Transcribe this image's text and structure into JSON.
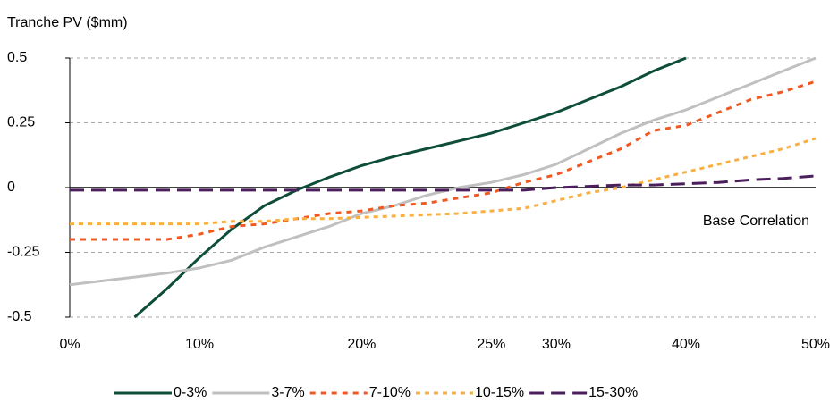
{
  "chart_data": {
    "type": "line",
    "y_axis_label": "Tranche PV ($mm)",
    "annotation": "Base Correlation",
    "categories": [
      "0%",
      null,
      null,
      null,
      "10%",
      null,
      null,
      null,
      null,
      "20%",
      null,
      null,
      null,
      "25%",
      null,
      "30%",
      null,
      null,
      null,
      "40%",
      null,
      null,
      null,
      "50%"
    ],
    "series": [
      {
        "name": "0-3%",
        "color": "#0d4d3a",
        "dash": "none",
        "values": [
          null,
          null,
          -0.5,
          -0.39,
          -0.27,
          -0.16,
          -0.07,
          -0.01,
          0.04,
          0.085,
          0.12,
          0.15,
          0.18,
          0.21,
          0.25,
          0.29,
          0.34,
          0.39,
          0.45,
          0.5,
          null,
          null,
          null,
          null
        ]
      },
      {
        "name": "3-7%",
        "color": "#c0c0c0",
        "dash": "none",
        "values": [
          -0.375,
          -0.36,
          -0.345,
          -0.33,
          -0.31,
          -0.28,
          -0.23,
          -0.19,
          -0.15,
          -0.1,
          -0.07,
          -0.03,
          0.0,
          0.02,
          0.05,
          0.09,
          0.15,
          0.21,
          0.26,
          0.3,
          0.35,
          0.4,
          0.45,
          0.5
        ]
      },
      {
        "name": "7-10%",
        "color": "#f05a22",
        "dash": "6,6",
        "values": [
          -0.2,
          -0.2,
          -0.2,
          -0.2,
          -0.18,
          -0.15,
          -0.14,
          -0.12,
          -0.1,
          -0.09,
          -0.07,
          -0.06,
          -0.04,
          -0.02,
          0.02,
          0.05,
          0.1,
          0.15,
          0.22,
          0.24,
          0.29,
          0.34,
          0.37,
          0.41
        ]
      },
      {
        "name": "10-15%",
        "color": "#f9b040",
        "dash": "5,5",
        "values": [
          -0.14,
          -0.14,
          -0.14,
          -0.14,
          -0.14,
          -0.13,
          -0.13,
          -0.12,
          -0.12,
          -0.115,
          -0.11,
          -0.105,
          -0.1,
          -0.09,
          -0.08,
          -0.05,
          -0.02,
          0.0,
          0.03,
          0.06,
          0.09,
          0.12,
          0.15,
          0.19
        ]
      },
      {
        "name": "15-30%",
        "color": "#4b1f5c",
        "dash": "16,8",
        "values": [
          -0.01,
          -0.01,
          -0.01,
          -0.01,
          -0.01,
          -0.01,
          -0.01,
          -0.01,
          -0.01,
          -0.01,
          -0.01,
          -0.01,
          -0.01,
          -0.01,
          -0.01,
          0.0,
          0.005,
          0.01,
          0.01,
          0.015,
          0.02,
          0.03,
          0.035,
          0.045
        ]
      }
    ],
    "ylim": [
      -0.5,
      0.5
    ],
    "yticks": [
      -0.5,
      -0.25,
      0,
      0.25,
      0.5
    ],
    "grid": true
  }
}
